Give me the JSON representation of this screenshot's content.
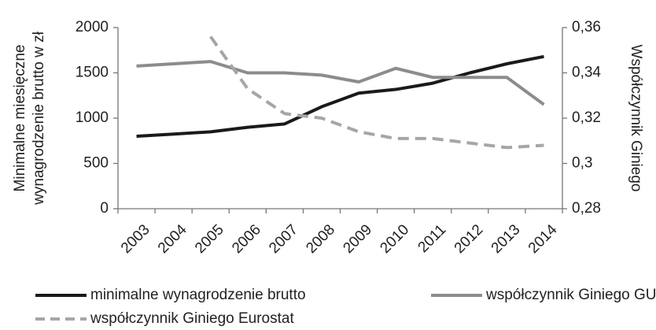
{
  "chart_data": {
    "type": "line",
    "ylabel": [
      "Minimalne miesięczne",
      "wynagrodzenie brutto w zł"
    ],
    "y2label": "Współczynnik Giniego",
    "categories": [
      "2003",
      "2004",
      "2005",
      "2006",
      "2007",
      "2008",
      "2009",
      "2010",
      "2011",
      "2012",
      "2013",
      "2014"
    ],
    "series": [
      {
        "name": "minimalne wynagrodzenie brutto",
        "color": "#1a1a1a",
        "dash": false,
        "values": [
          800,
          824,
          849,
          899,
          936,
          1126,
          1276,
          1317,
          1386,
          1500,
          1600,
          1680
        ]
      },
      {
        "name": "współczynnik Giniego GUS",
        "color": "#8c8c8c",
        "dash": false,
        "axis": "y2",
        "values": [
          0.343,
          0.344,
          0.345,
          0.34,
          0.34,
          0.339,
          0.336,
          0.342,
          0.338,
          0.338,
          0.338,
          0.326
        ]
      },
      {
        "name": "współczynnik  Giniego Eurostat",
        "color": "#a6a6a6",
        "dash": true,
        "axis": "y2",
        "values": [
          null,
          null,
          0.356,
          0.333,
          0.322,
          0.32,
          0.314,
          0.311,
          0.311,
          0.309,
          0.307,
          0.308
        ]
      }
    ],
    "ylim": [
      0,
      2000
    ],
    "yticks": [
      0,
      500,
      1000,
      1500,
      2000
    ],
    "y2lim": [
      0.28,
      0.36
    ],
    "y2ticks": [
      {
        "value": 0.28,
        "label": "0,28"
      },
      {
        "value": 0.3,
        "label": "0,3"
      },
      {
        "value": 0.32,
        "label": "0,32"
      },
      {
        "value": 0.34,
        "label": "0,34"
      },
      {
        "value": 0.36,
        "label": "0,36"
      }
    ],
    "grid": false
  }
}
